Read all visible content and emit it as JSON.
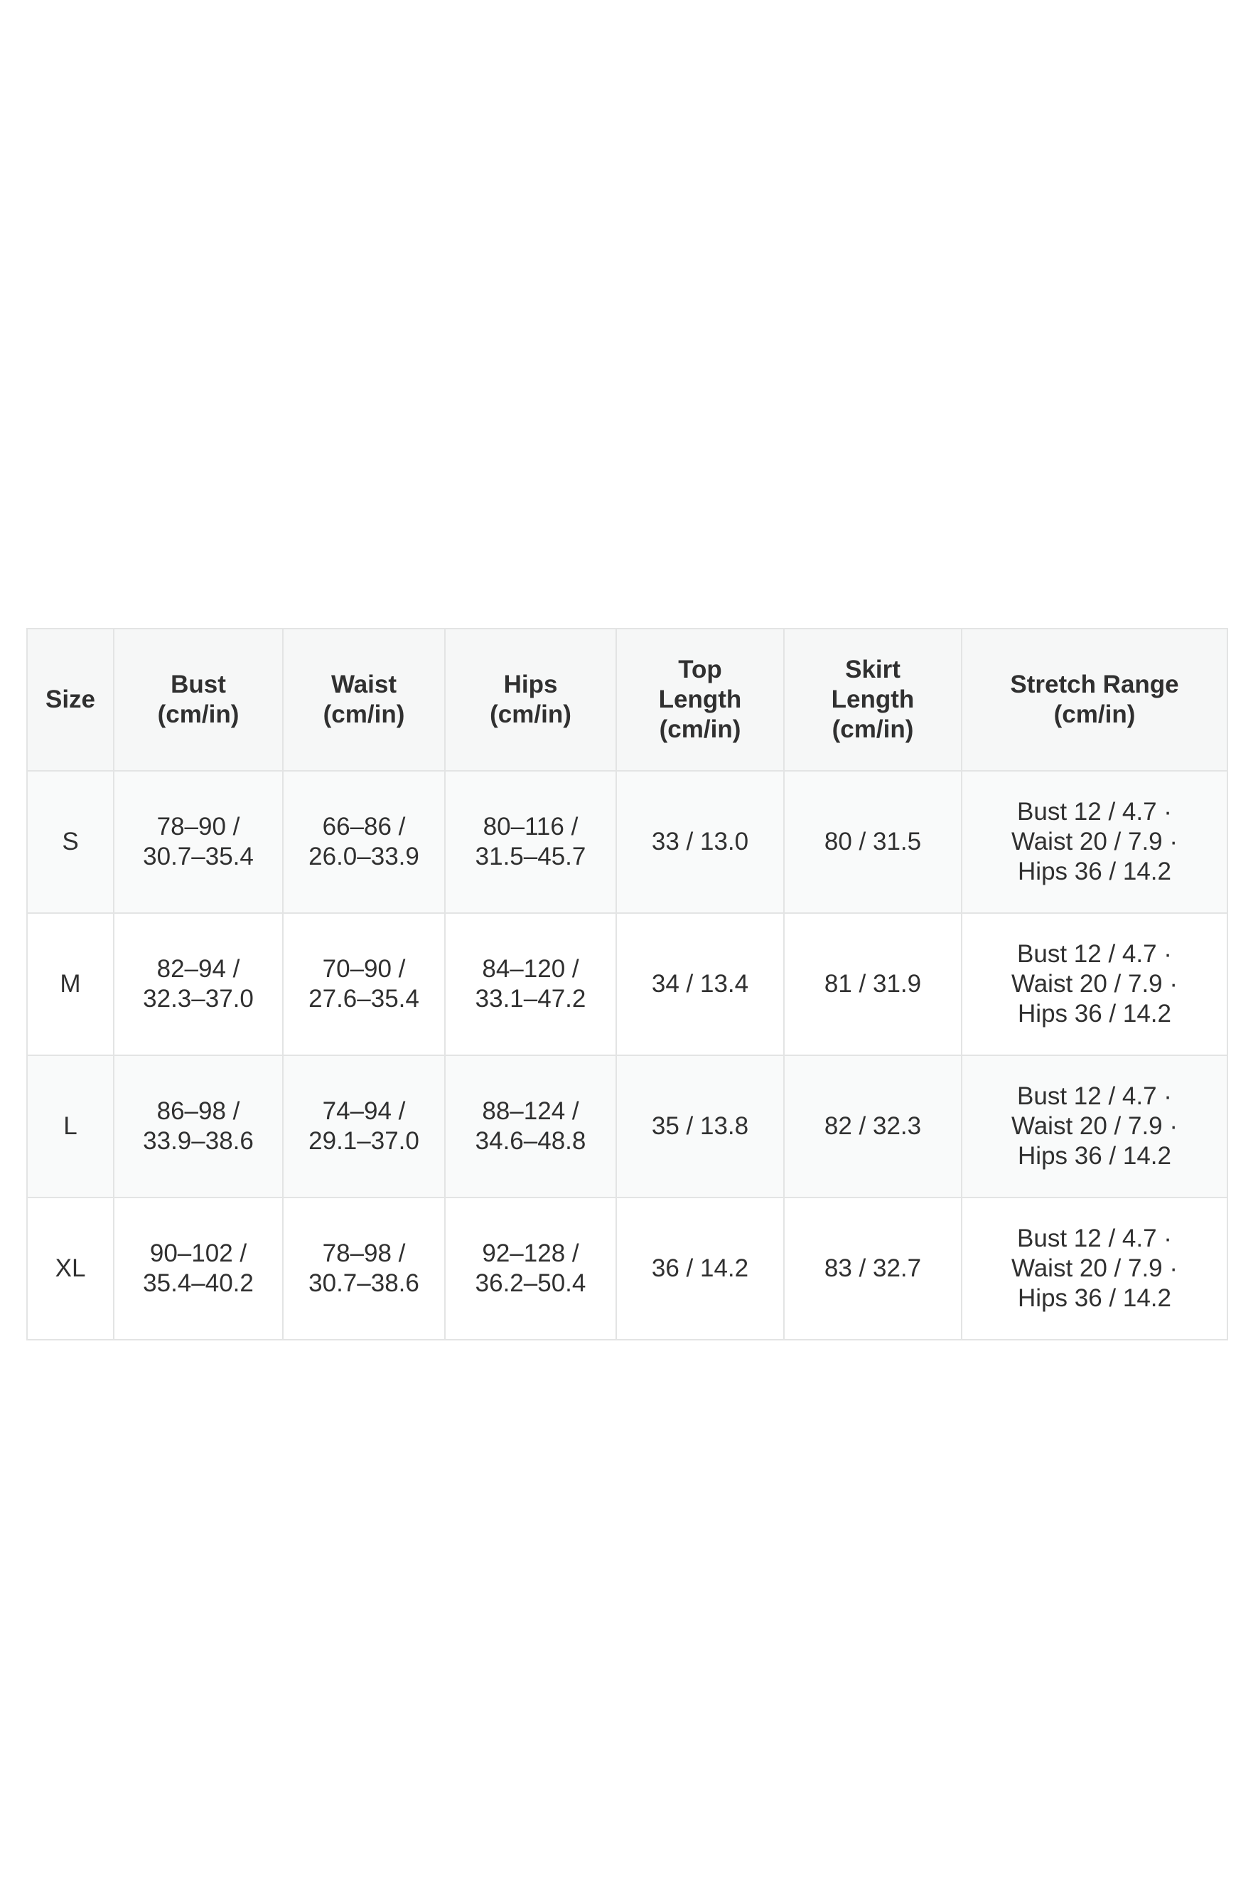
{
  "chart_data": {
    "type": "table",
    "columns": [
      "Size",
      "Bust\n(cm/in)",
      "Waist\n(cm/in)",
      "Hips\n(cm/in)",
      "Top\nLength\n(cm/in)",
      "Skirt\nLength\n(cm/in)",
      "Stretch Range\n(cm/in)"
    ],
    "rows": [
      [
        "S",
        "78–90 /\n30.7–35.4",
        "66–86 /\n26.0–33.9",
        "80–116 /\n31.5–45.7",
        "33 / 13.0",
        "80 / 31.5",
        "Bust 12 / 4.7 ·\nWaist 20 / 7.9 ·\nHips 36 / 14.2"
      ],
      [
        "M",
        "82–94 /\n32.3–37.0",
        "70–90 /\n27.6–35.4",
        "84–120 /\n33.1–47.2",
        "34 / 13.4",
        "81 / 31.9",
        "Bust 12 / 4.7 ·\nWaist 20 / 7.9 ·\nHips 36 / 14.2"
      ],
      [
        "L",
        "86–98 /\n33.9–38.6",
        "74–94 /\n29.1–37.0",
        "88–124 /\n34.6–48.8",
        "35 / 13.8",
        "82 / 32.3",
        "Bust 12 / 4.7 ·\nWaist 20 / 7.9 ·\nHips 36 / 14.2"
      ],
      [
        "XL",
        "90–102 /\n35.4–40.2",
        "78–98 /\n30.7–38.6",
        "92–128 /\n36.2–50.4",
        "36 / 14.2",
        "83 / 32.7",
        "Bust 12 / 4.7 ·\nWaist 20 / 7.9 ·\nHips 36 / 14.2"
      ]
    ]
  }
}
